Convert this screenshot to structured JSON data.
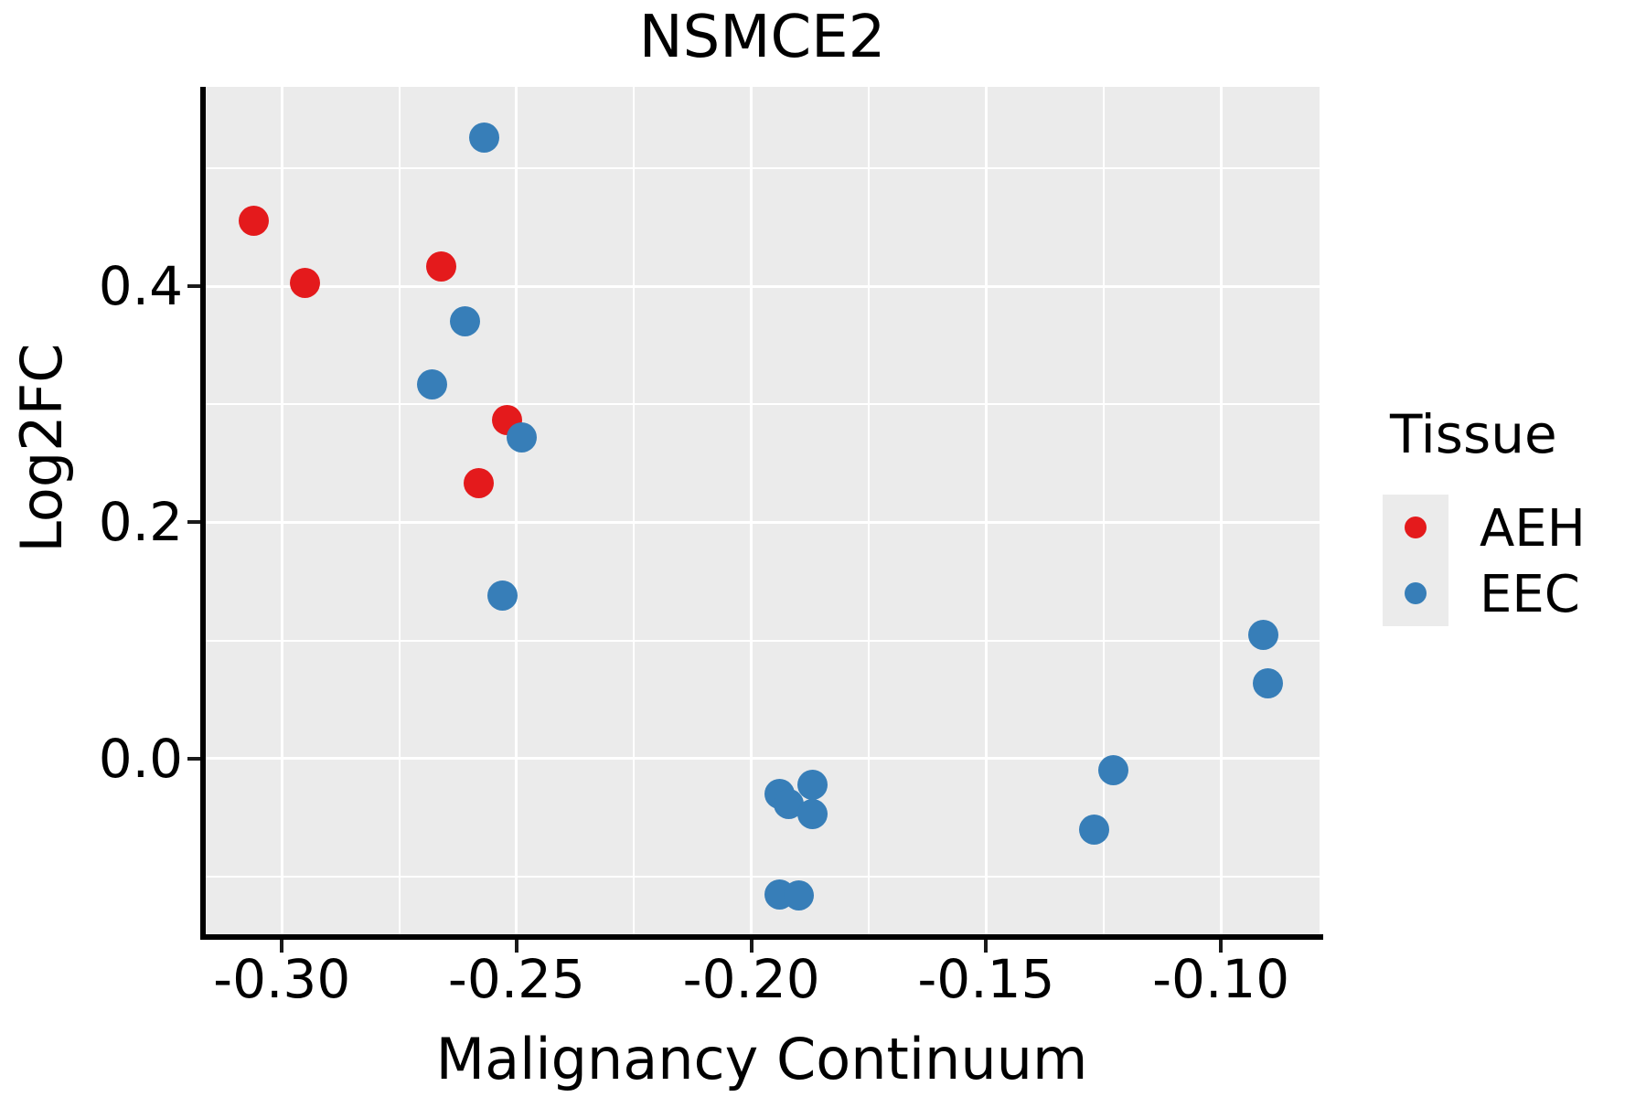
{
  "title": "NSMCE2",
  "axes": {
    "x_label": "Malignancy Continuum",
    "y_label": "Log2FC"
  },
  "legend": {
    "title": "Tissue",
    "position": "right",
    "items": [
      {
        "label": "AEH",
        "color": "#e41a1c"
      },
      {
        "label": "EEC",
        "color": "#377eb8"
      }
    ]
  },
  "colors": {
    "panel_background": "#ebebeb",
    "gridline": "#ffffff",
    "aeh_red": "#e41a1c",
    "eec_blue": "#377eb8",
    "text": "#000000"
  },
  "chart_data": {
    "type": "scatter",
    "title": "NSMCE2",
    "xlabel": "Malignancy Continuum",
    "ylabel": "Log2FC",
    "xlim": [
      -0.3164,
      -0.079
    ],
    "ylim": [
      -0.1486,
      0.5687
    ],
    "grid": true,
    "legend_position": "right",
    "x_ticks": [
      {
        "value": -0.3,
        "label": "-0.30"
      },
      {
        "value": -0.25,
        "label": "-0.25"
      },
      {
        "value": -0.2,
        "label": "-0.20"
      },
      {
        "value": -0.15,
        "label": "-0.15"
      },
      {
        "value": -0.1,
        "label": "-0.10"
      }
    ],
    "y_ticks": [
      {
        "value": 0.4,
        "label": "0.4"
      },
      {
        "value": 0.2,
        "label": "0.2"
      },
      {
        "value": 0.0,
        "label": "0.0"
      }
    ],
    "x_minor_ticks": [
      -0.275,
      -0.225,
      -0.175,
      -0.125
    ],
    "y_minor_ticks": [
      0.5,
      0.3,
      0.1,
      -0.1
    ],
    "series": [
      {
        "name": "AEH",
        "color": "#e41a1c",
        "points": [
          [
            -0.306,
            0.455
          ],
          [
            -0.295,
            0.403
          ],
          [
            -0.266,
            0.417
          ],
          [
            -0.252,
            0.287
          ],
          [
            -0.258,
            0.233
          ]
        ]
      },
      {
        "name": "EEC",
        "color": "#377eb8",
        "points": [
          [
            -0.257,
            0.526
          ],
          [
            -0.261,
            0.37
          ],
          [
            -0.268,
            0.317
          ],
          [
            -0.249,
            0.272
          ],
          [
            -0.253,
            0.138
          ],
          [
            -0.194,
            -0.03
          ],
          [
            -0.192,
            -0.038
          ],
          [
            -0.187,
            -0.022
          ],
          [
            -0.187,
            -0.047
          ],
          [
            -0.194,
            -0.115
          ],
          [
            -0.19,
            -0.116
          ],
          [
            -0.091,
            0.105
          ],
          [
            -0.09,
            0.064
          ],
          [
            -0.123,
            -0.01
          ],
          [
            -0.127,
            -0.06
          ]
        ]
      }
    ]
  }
}
